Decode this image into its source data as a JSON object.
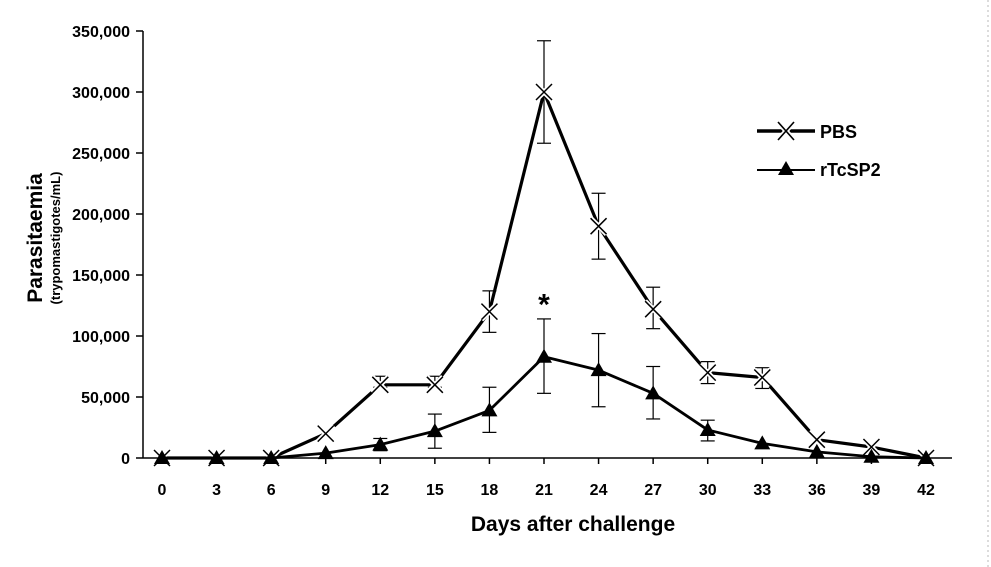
{
  "chart_data": {
    "type": "line",
    "xlabel": "Days after challenge",
    "ylabel": "Parasitaemia",
    "ylabel_sub": "(trypomastigotes/mL)",
    "x": [
      0,
      3,
      6,
      9,
      12,
      15,
      18,
      21,
      24,
      27,
      30,
      33,
      36,
      39,
      42
    ],
    "x_ticks": [
      "0",
      "3",
      "6",
      "9",
      "12",
      "15",
      "18",
      "21",
      "24",
      "27",
      "30",
      "33",
      "36",
      "39",
      "42"
    ],
    "ylim": [
      0,
      350000
    ],
    "y_ticks": [
      0,
      50000,
      100000,
      150000,
      200000,
      250000,
      300000,
      350000
    ],
    "y_tick_labels": [
      "0",
      "50,000",
      "100,000",
      "150,000",
      "200,000",
      "250,000",
      "300,000",
      "350,000"
    ],
    "grid": false,
    "legend_position": "top-right",
    "series": [
      {
        "name": "PBS",
        "marker": "x",
        "color": "#000000",
        "values": [
          0,
          0,
          0,
          20000,
          60000,
          60000,
          120000,
          300000,
          190000,
          122000,
          70000,
          66000,
          15000,
          9000,
          0
        ],
        "error_upper": [
          0,
          0,
          0,
          0,
          67000,
          67000,
          137000,
          342000,
          217000,
          140000,
          79000,
          74000,
          0,
          0,
          0
        ],
        "error_lower": [
          0,
          0,
          0,
          0,
          58000,
          58000,
          103000,
          258000,
          163000,
          106000,
          61000,
          57000,
          0,
          0,
          0
        ]
      },
      {
        "name": "rTcSP2",
        "marker": "triangle",
        "color": "#000000",
        "values": [
          0,
          0,
          0,
          4000,
          11000,
          22000,
          39000,
          83000,
          72000,
          53000,
          23000,
          12000,
          5000,
          1000,
          0
        ],
        "error_upper": [
          0,
          0,
          0,
          0,
          16000,
          36000,
          58000,
          114000,
          102000,
          75000,
          31000,
          0,
          0,
          0,
          0
        ],
        "error_lower": [
          0,
          0,
          0,
          0,
          6000,
          8000,
          21000,
          53000,
          42000,
          32000,
          14000,
          0,
          0,
          0,
          0
        ]
      }
    ],
    "annotations": [
      {
        "text": "*",
        "x": 21,
        "y": 126000
      }
    ]
  }
}
